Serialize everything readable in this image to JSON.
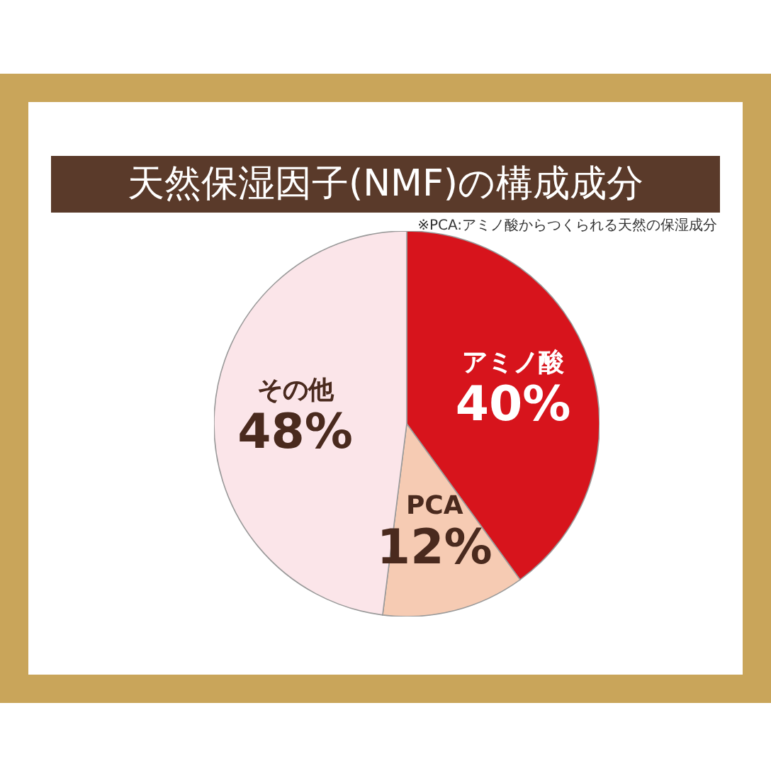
{
  "chart_data": {
    "type": "pie",
    "title": "天然保湿因子(NMF)の構成成分",
    "annotations": [
      "※PCA:アミノ酸からつくられる天然の保湿成分"
    ],
    "categories": [
      "アミノ酸",
      "PCA",
      "その他"
    ],
    "values": [
      40,
      12,
      48
    ],
    "value_labels": [
      "40%",
      "12%",
      "48%"
    ],
    "colors": [
      "#d7141c",
      "#f6cbb3",
      "#fbe5e9"
    ]
  }
}
